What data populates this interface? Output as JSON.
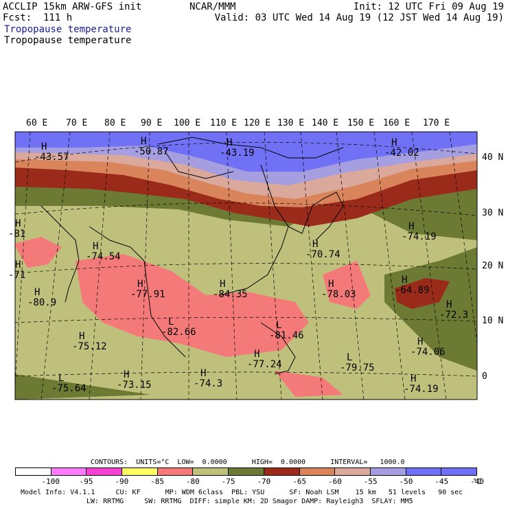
{
  "header": {
    "model_line": "ACCLIP 15km ARW-GFS init",
    "forecast_line": "Fcst:  111 h",
    "center": "NCAR/MMM",
    "init": "Init: 12 UTC Fri 09 Aug 19",
    "valid": "Valid: 03 UTC Wed 14 Aug 19 (12 JST Wed 14 Aug 19)",
    "field_1": "Tropopause temperature",
    "field_2": "Tropopause temperature"
  },
  "map": {
    "lon_labels": [
      "60 E",
      "70 E",
      "80 E",
      "90 E",
      "100 E",
      "110 E",
      "120 E",
      "130 E",
      "140 E",
      "150 E",
      "160 E",
      "170 E"
    ],
    "lat_labels": [
      "40 N",
      "30 N",
      "20 N",
      "10 N",
      "0"
    ],
    "colors": {
      "ocean_land_base": "#b9ba79",
      "cold": "#c0c07d",
      "olive": "#6d7a33",
      "red_brown": "#9a2a1a",
      "orange": "#d9845a",
      "tan": "#dba89c",
      "lavender": "#a59ee0",
      "blue": "#7171f5",
      "salmon": "#f47a7a",
      "coast": "#000000"
    },
    "labels": [
      {
        "type": "H",
        "value": "-43.57"
      },
      {
        "type": "H",
        "value": "-50.87"
      },
      {
        "type": "H",
        "value": "-43.19"
      },
      {
        "type": "H",
        "value": "-42.02"
      },
      {
        "type": "H",
        "value": "-74.19"
      },
      {
        "type": "H",
        "value": "-70.74"
      },
      {
        "type": "H",
        "value": "-74.54"
      },
      {
        "type": "H",
        "value": "-64.89"
      },
      {
        "type": "H",
        "value": "-78.03"
      },
      {
        "type": "H",
        "value": "-77.91"
      },
      {
        "type": "H",
        "value": "-84.35"
      },
      {
        "type": "H",
        "value": "-80.9"
      },
      {
        "type": "L",
        "value": "-82.66"
      },
      {
        "type": "L",
        "value": "-81.46"
      },
      {
        "type": "H",
        "value": "-72.3"
      },
      {
        "type": "H",
        "value": "-75.12"
      },
      {
        "type": "H",
        "value": "-77.24"
      },
      {
        "type": "L",
        "value": "-79.75"
      },
      {
        "type": "H",
        "value": "-74.06"
      },
      {
        "type": "L",
        "value": "-75.64"
      },
      {
        "type": "H",
        "value": "-73.15"
      },
      {
        "type": "H",
        "value": "-74.3"
      },
      {
        "type": "H",
        "value": "-74.19"
      },
      {
        "type": "H",
        "value": "-81"
      },
      {
        "type": "H",
        "value": "-71"
      }
    ]
  },
  "legend": {
    "contours_line": "CONTOURS:  UNITS=°C  LOW=  0.0000      HIGH=  0.0000      INTERVAL=   1000.0",
    "swatches": [
      "#ffffff",
      "#ff7bff",
      "#f542d4",
      "#ffff66",
      "#f47a7a",
      "#c0c07d",
      "#6d7a33",
      "#9a2a1a",
      "#d9845a",
      "#dba89c",
      "#a59ee0",
      "#7171f5",
      "#7171f5"
    ],
    "ticks": [
      "-100",
      "-95",
      "-90",
      "-85",
      "-80",
      "-75",
      "-70",
      "-65",
      "-60",
      "-55",
      "-50",
      "-45",
      "-40",
      "°C"
    ]
  },
  "footer": {
    "line1": "Model Info: V4.1.1     CU: KF      MP: WDM 6class  PBL: YSU      SF: Noah LSM    15 km   51 levels   90 sec",
    "line2": "LW: RRTMG     SW: RRTMG  DIFF: simple KM: 2D Smagor DAMP: Rayleigh3  SFLAY: MM5"
  }
}
